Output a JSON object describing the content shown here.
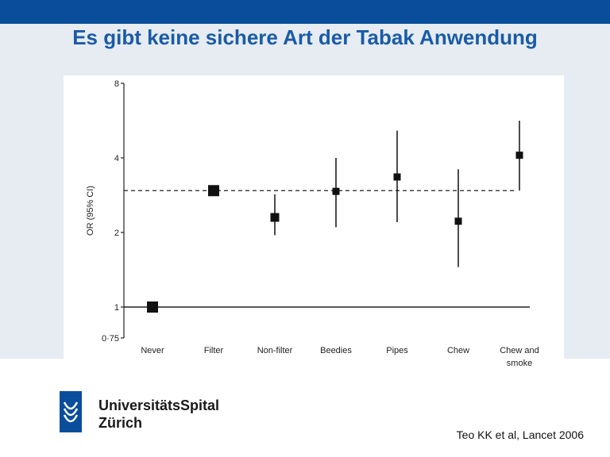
{
  "slide": {
    "title": "Es gibt keine sichere Art der Tabak Anwendung",
    "citation": "Teo KK et al, Lancet 2006"
  },
  "branding": {
    "line1": "UniversitätsSpital",
    "line2": "Zürich",
    "logo_icon": "usz-logo-icon",
    "primary_color": "#0a4e9b",
    "title_color": "#1a5ba8",
    "band_color": "#e6ecf2"
  },
  "chart_data": {
    "type": "scatter",
    "ylabel": "OR (95% CI)",
    "y_scale": "log",
    "ylim": [
      0.75,
      8
    ],
    "yticks": [
      {
        "value": 0.75,
        "label": "0·75"
      },
      {
        "value": 1,
        "label": "1"
      },
      {
        "value": 2,
        "label": "2"
      },
      {
        "value": 4,
        "label": "4"
      },
      {
        "value": 8,
        "label": "8"
      }
    ],
    "reference_line": 1,
    "dashed_line": 2.95,
    "categories": [
      {
        "label": [
          "Never"
        ],
        "or": 1.0,
        "lo": null,
        "hi": null,
        "marker": "large"
      },
      {
        "label": [
          "Filter"
        ],
        "or": 2.95,
        "lo": 2.85,
        "hi": 3.05,
        "marker": "large"
      },
      {
        "label": [
          "Non-filter"
        ],
        "or": 2.3,
        "lo": 1.95,
        "hi": 2.85,
        "marker": "medium"
      },
      {
        "label": [
          "Beedies"
        ],
        "or": 2.93,
        "lo": 2.1,
        "hi": 4.0,
        "marker": "small"
      },
      {
        "label": [
          "Pipes"
        ],
        "or": 3.35,
        "lo": 2.2,
        "hi": 5.15,
        "marker": "small"
      },
      {
        "label": [
          "Chew"
        ],
        "or": 2.22,
        "lo": 1.45,
        "hi": 3.6,
        "marker": "small"
      },
      {
        "label": [
          "Chew and",
          "smoke"
        ],
        "or": 4.1,
        "lo": 2.95,
        "hi": 5.65,
        "marker": "small"
      }
    ]
  }
}
